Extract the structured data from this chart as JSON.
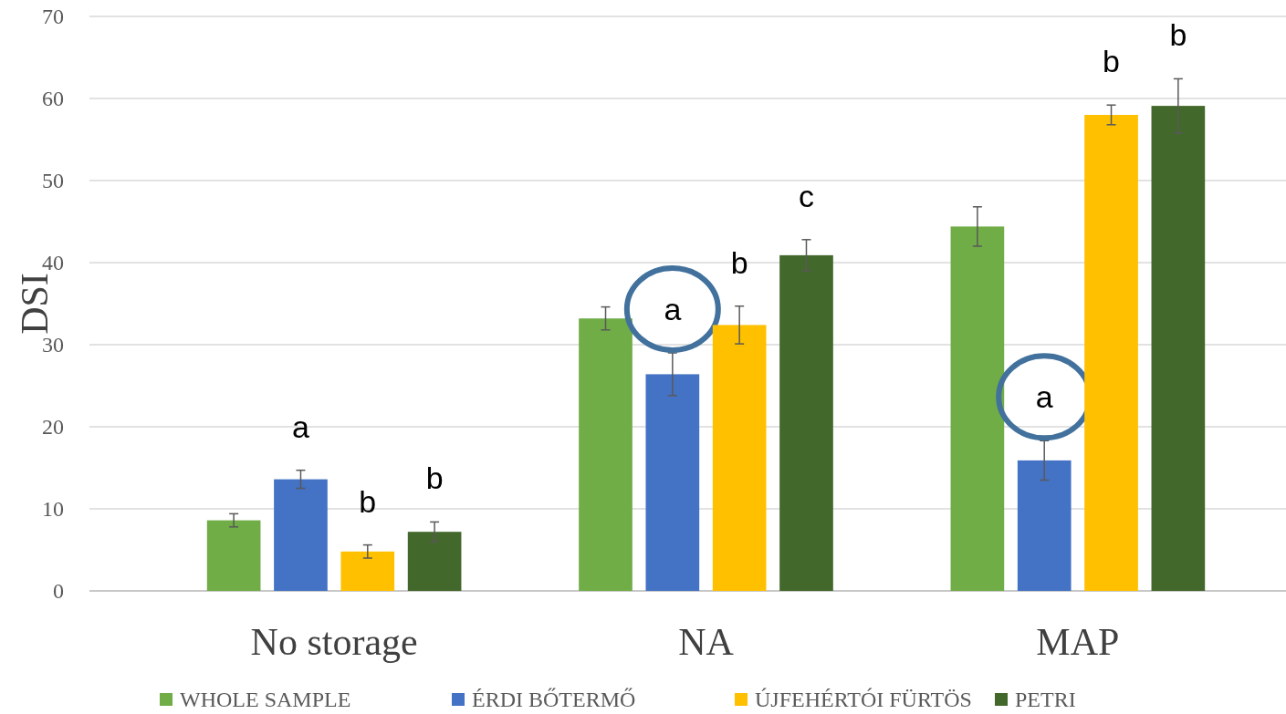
{
  "chart_data": {
    "type": "bar",
    "ylabel": "DSI",
    "categories": [
      "No storage",
      "NA",
      "MAP"
    ],
    "series": [
      {
        "name": "WHOLE SAMPLE",
        "color": "#70ad47",
        "values": [
          8.6,
          33.2,
          44.4
        ],
        "errors": [
          0.8,
          1.4,
          2.4
        ]
      },
      {
        "name": "ÉRDI BŐTERMŐ",
        "color": "#4472c4",
        "values": [
          13.6,
          26.4,
          15.9
        ],
        "errors": [
          1.1,
          2.6,
          2.4
        ],
        "value_labels": [
          "a",
          "a",
          "a"
        ]
      },
      {
        "name": "ÚJFEHÉRTÓI FÜRTÖS",
        "color": "#ffc000",
        "values": [
          4.8,
          32.4,
          58.0
        ],
        "errors": [
          0.8,
          2.3,
          1.2
        ],
        "value_labels": [
          "b",
          "b",
          "b"
        ]
      },
      {
        "name": "PETRI",
        "color": "#43682b",
        "values": [
          7.2,
          40.9,
          59.1
        ],
        "errors": [
          1.2,
          1.9,
          3.3
        ],
        "value_labels": [
          "b",
          "c",
          "b"
        ]
      }
    ],
    "ylim": [
      0,
      70
    ],
    "yticks": [
      0,
      10,
      20,
      30,
      40,
      50,
      60,
      70
    ],
    "grid": "y",
    "legend": "bottom"
  }
}
